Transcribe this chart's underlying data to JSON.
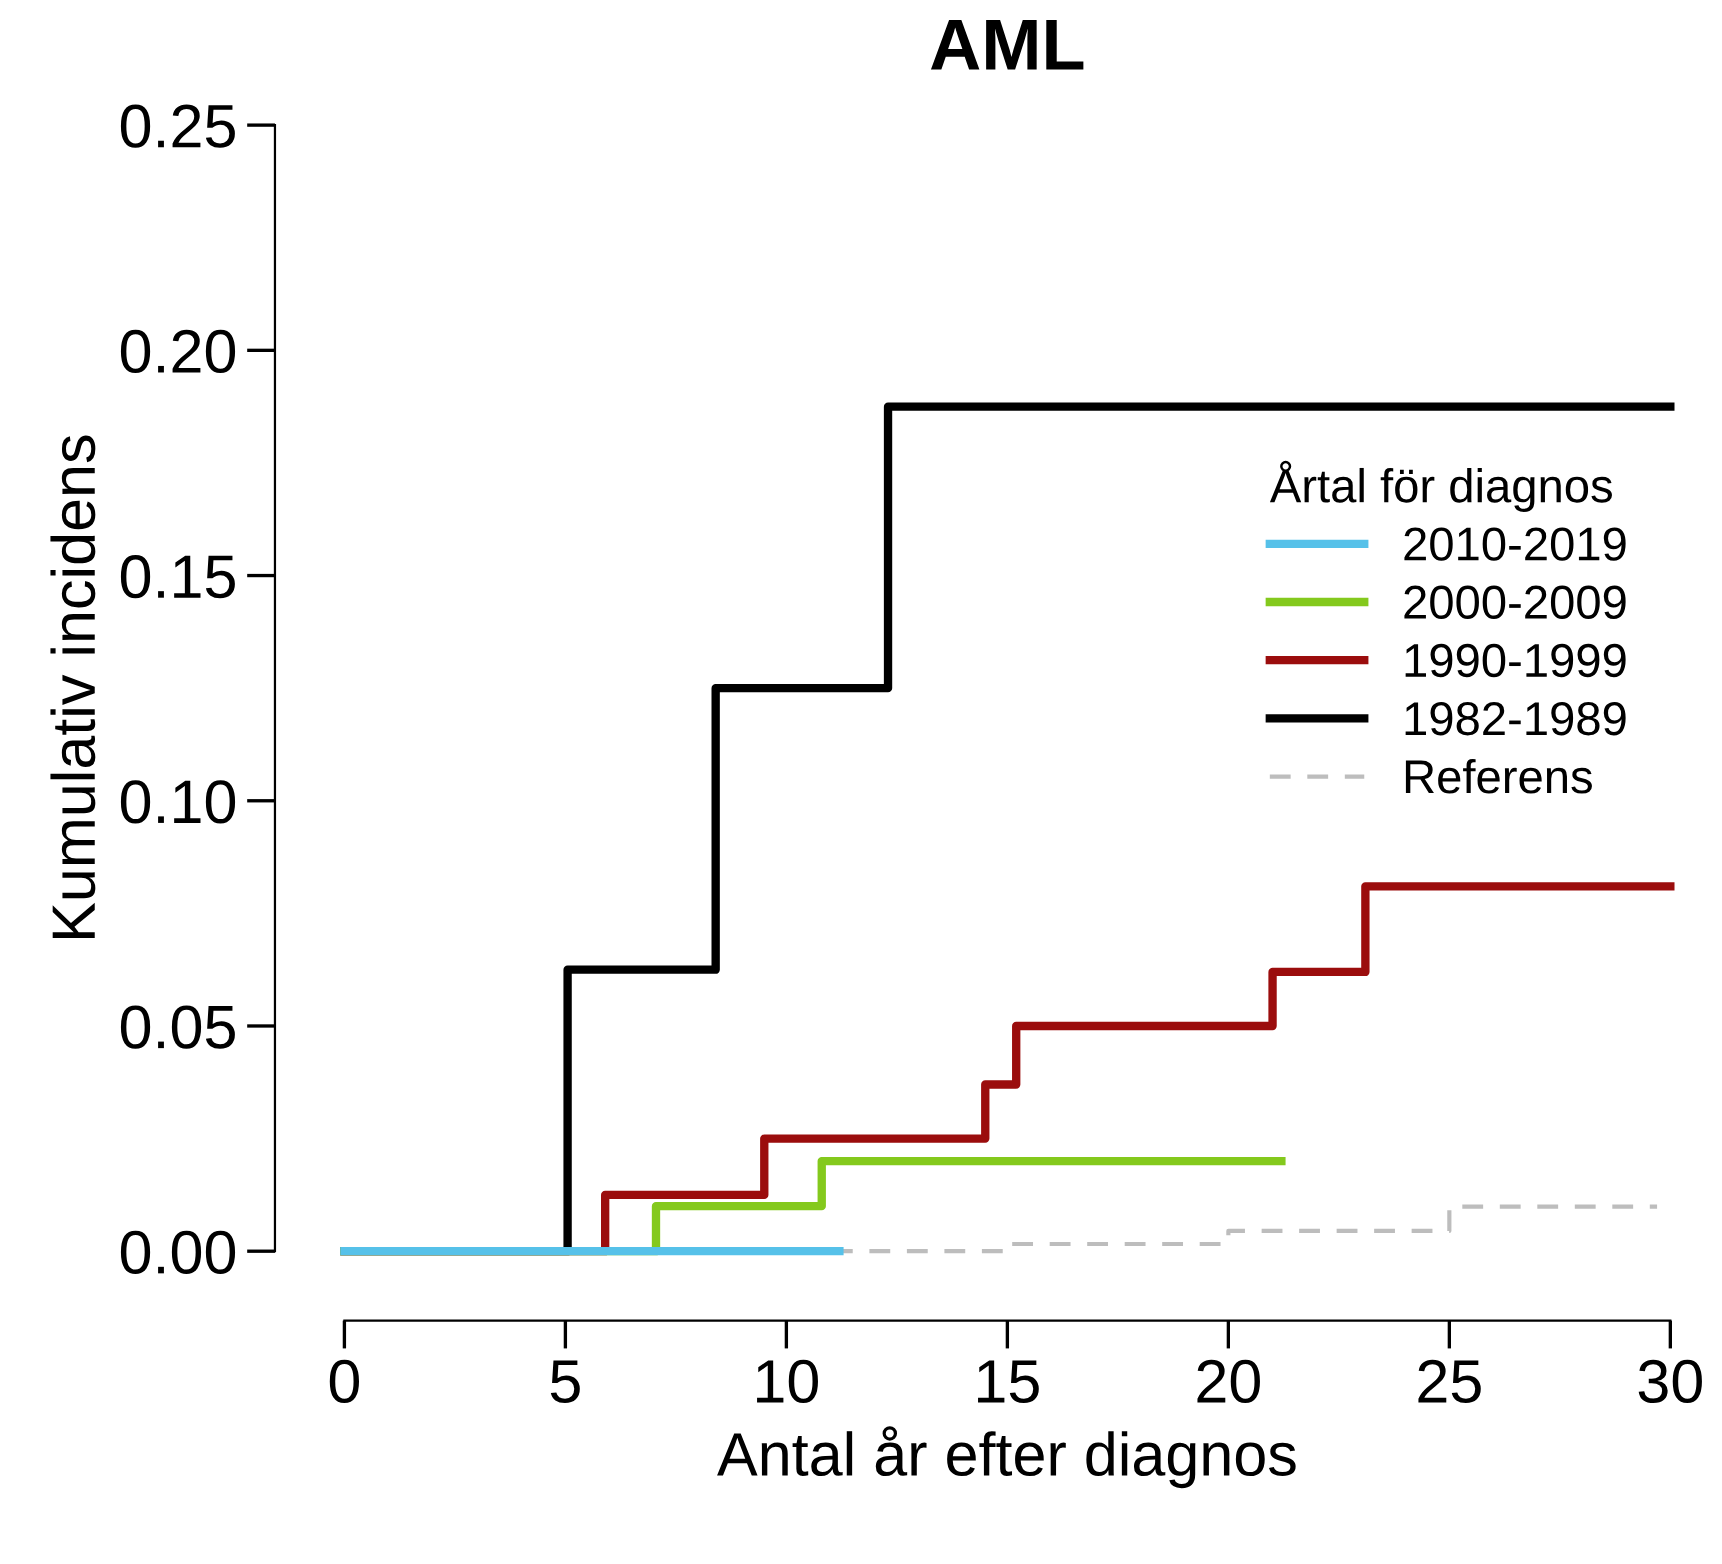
{
  "chart_data": {
    "type": "step",
    "title": "AML",
    "xlabel": "Antal år efter diagnos",
    "ylabel": "Kumulativ incidens",
    "legend_title": "Årtal för diagnos",
    "series": [
      {
        "name": "2010-2019",
        "color": "#56c1e9",
        "x": [
          0,
          11.2
        ],
        "values": [
          0,
          0
        ]
      },
      {
        "name": "2000-2009",
        "color": "#84c91d",
        "x": [
          0,
          7.05,
          10.8,
          21.2
        ],
        "values": [
          0,
          0.01,
          0.02,
          0.02
        ]
      },
      {
        "name": "1990-1999",
        "color": "#9b0d0d",
        "x": [
          0,
          5.9,
          9.5,
          14.5,
          15.2,
          21.0,
          23.1,
          30
        ],
        "values": [
          0,
          0.0125,
          0.025,
          0.037,
          0.05,
          0.062,
          0.081,
          0.081
        ]
      },
      {
        "name": "1982-1989",
        "color": "#000000",
        "x": [
          0,
          5.05,
          8.4,
          12.3,
          30
        ],
        "values": [
          0,
          0.0625,
          0.125,
          0.1875,
          0.1875
        ]
      },
      {
        "name": "Referens",
        "color": "#bdbdbd",
        "line_style": "dashed",
        "x": [
          0,
          15.0,
          20.0,
          25.0,
          29.7
        ],
        "values": [
          0,
          0.0016,
          0.0045,
          0.0099,
          0.0099
        ]
      }
    ],
    "xlim": [
      0,
      30
    ],
    "ylim": [
      0,
      0.25
    ],
    "xticks": [
      0,
      5,
      10,
      15,
      20,
      25,
      30
    ],
    "yticks": [
      {
        "value": 0,
        "label": "0.00"
      },
      {
        "value": 0.05,
        "label": "0.05"
      },
      {
        "value": 0.1,
        "label": "0.10"
      },
      {
        "value": 0.15,
        "label": "0.15"
      },
      {
        "value": 0.2,
        "label": "0.20"
      },
      {
        "value": 0.25,
        "label": "0.25"
      }
    ],
    "legend": "center right",
    "grid": false
  }
}
